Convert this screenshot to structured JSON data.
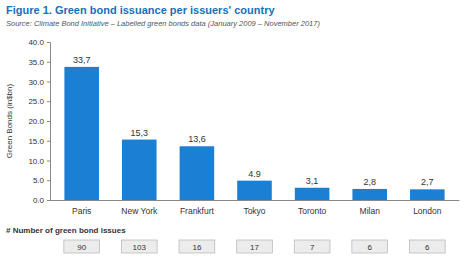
{
  "chart_data": {
    "type": "bar",
    "title": "Figure 1. Green bond issuance per issuers' country",
    "subtitle": "Source: Climate Bond Initiative – Labelled green bonds data (January 2009 – November 2017)",
    "y_label": "Green Bonds (in$bn)",
    "categories": [
      "Paris",
      "New York",
      "Frankfurt",
      "Tokyo",
      "Toronto",
      "Milan",
      "London"
    ],
    "values": [
      33.7,
      15.3,
      13.6,
      4.9,
      3.1,
      2.8,
      2.7
    ],
    "value_labels": [
      "33,7",
      "15,3",
      "13,6",
      "4.9",
      "3,1",
      "2,8",
      "2,7"
    ],
    "color": "#1b7fd3",
    "ylim": [
      0,
      40
    ],
    "yticks": [
      {
        "value": 0,
        "label": "0.0"
      },
      {
        "value": 5,
        "label": "5.0"
      },
      {
        "value": 10,
        "label": "10.0"
      },
      {
        "value": 15,
        "label": "15.0"
      },
      {
        "value": 20,
        "label": "20.0"
      },
      {
        "value": 25,
        "label": "25.0"
      },
      {
        "value": 30,
        "label": "30.0"
      },
      {
        "value": 35,
        "label": "35.0"
      },
      {
        "value": 40,
        "label": "40.0"
      }
    ],
    "grid": false,
    "data_labels": true,
    "issues_title": "# Number of green bond issues",
    "issues": [
      90,
      103,
      16,
      17,
      7,
      6,
      6
    ]
  }
}
